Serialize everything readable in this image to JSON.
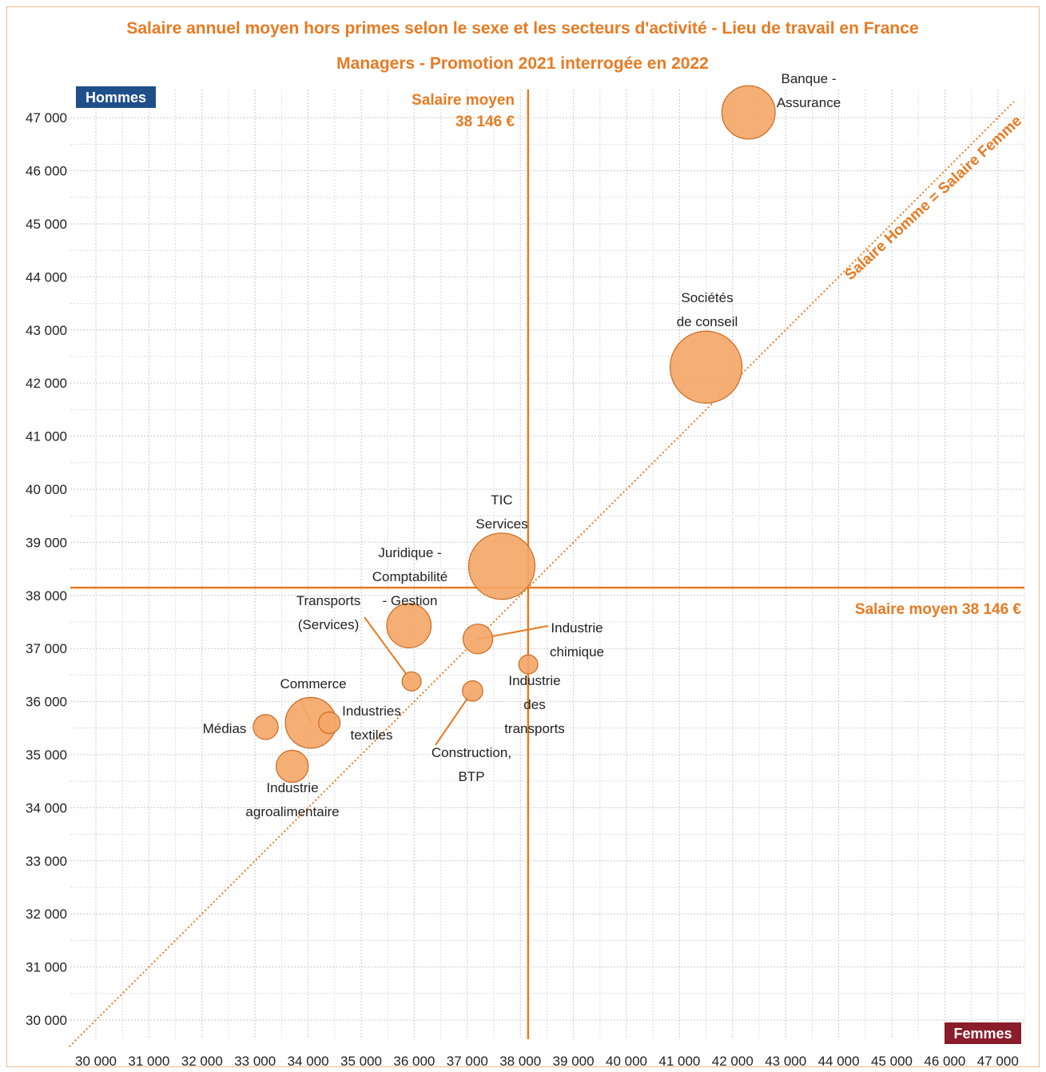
{
  "chart_data": {
    "type": "scatter",
    "title": "Salaire annuel moyen hors primes selon le sexe et les secteurs d'activité - Lieu de travail en France",
    "subtitle": "Managers - Promotion 2021 interrogée en 2022",
    "xlabel": "Femmes",
    "ylabel": "Hommes",
    "xlim": [
      29500,
      47500
    ],
    "ylim": [
      29600,
      47300
    ],
    "x_ticks": [
      30000,
      31000,
      32000,
      33000,
      34000,
      35000,
      36000,
      37000,
      38000,
      39000,
      40000,
      41000,
      42000,
      43000,
      44000,
      45000,
      46000,
      47000
    ],
    "y_ticks": [
      30000,
      31000,
      32000,
      33000,
      34000,
      35000,
      36000,
      37000,
      38000,
      39000,
      40000,
      41000,
      42000,
      43000,
      44000,
      45000,
      46000,
      47000
    ],
    "x_tick_labels": [
      "30 000",
      "31 000",
      "32 000",
      "33 000",
      "34 000",
      "35 000",
      "36 000",
      "37 000",
      "38 000",
      "39 000",
      "40 000",
      "41 000",
      "42 000",
      "43 000",
      "44 000",
      "45 000",
      "46 000",
      "47 000"
    ],
    "y_tick_labels": [
      "30 000",
      "31 000",
      "32 000",
      "33 000",
      "34 000",
      "35 000",
      "36 000",
      "37 000",
      "38 000",
      "39 000",
      "40 000",
      "41 000",
      "42 000",
      "43 000",
      "44 000",
      "45 000",
      "46 000",
      "47 000"
    ],
    "grid": true,
    "mean_salary": 38146,
    "mean_label_vertical": [
      "Salaire moyen",
      "38 146 €"
    ],
    "mean_label_horizontal": "Salaire moyen 38 146 €",
    "diagonal_label": "Salaire Homme = Salaire Femme",
    "colors": {
      "accent": "#e87a22",
      "bubble_fill": "#f4a768",
      "bubble_stroke": "#c96a24",
      "hommes_badge": "#1f4f8a",
      "femmes_badge": "#8b1c2a"
    },
    "points": [
      {
        "name": "Banque - Assurance",
        "label_lines": [
          "Banque -",
          "Assurance"
        ],
        "x": 42300,
        "y": 47100,
        "size": 0.55
      },
      {
        "name": "Sociétés de conseil",
        "label_lines": [
          "Sociétés",
          "de conseil"
        ],
        "x": 41500,
        "y": 42300,
        "size": 1.0
      },
      {
        "name": "TIC Services",
        "label_lines": [
          "TIC",
          "Services"
        ],
        "x": 37650,
        "y": 38550,
        "size": 0.85
      },
      {
        "name": "Juridique - Comptabilité - Gestion",
        "label_lines": [
          "Juridique -",
          "Comptabilité",
          "- Gestion"
        ],
        "x": 35900,
        "y": 37430,
        "size": 0.38
      },
      {
        "name": "Industrie chimique",
        "label_lines": [
          "Industrie",
          "chimique"
        ],
        "x": 37200,
        "y": 37180,
        "size": 0.17
      },
      {
        "name": "Transports (Services)",
        "label_lines": [
          "Transports",
          "(Services)"
        ],
        "x": 35950,
        "y": 36380,
        "size": 0.07
      },
      {
        "name": "Industrie des transports",
        "label_lines": [
          "Industrie",
          "des",
          "transports"
        ],
        "x": 38150,
        "y": 36700,
        "size": 0.07
      },
      {
        "name": "Construction, BTP",
        "label_lines": [
          "Construction,",
          "BTP"
        ],
        "x": 37100,
        "y": 36200,
        "size": 0.08
      },
      {
        "name": "Commerce",
        "label_lines": [
          "Commerce"
        ],
        "x": 34050,
        "y": 35600,
        "size": 0.5
      },
      {
        "name": "Industries textiles",
        "label_lines": [
          "Industries",
          "textiles"
        ],
        "x": 34400,
        "y": 35600,
        "size": 0.09
      },
      {
        "name": "Médias",
        "label_lines": [
          "Médias"
        ],
        "x": 33200,
        "y": 35520,
        "size": 0.12
      },
      {
        "name": "Industrie agroalimentaire",
        "label_lines": [
          "Industrie",
          "agroalimentaire"
        ],
        "x": 33700,
        "y": 34780,
        "size": 0.2
      }
    ]
  }
}
